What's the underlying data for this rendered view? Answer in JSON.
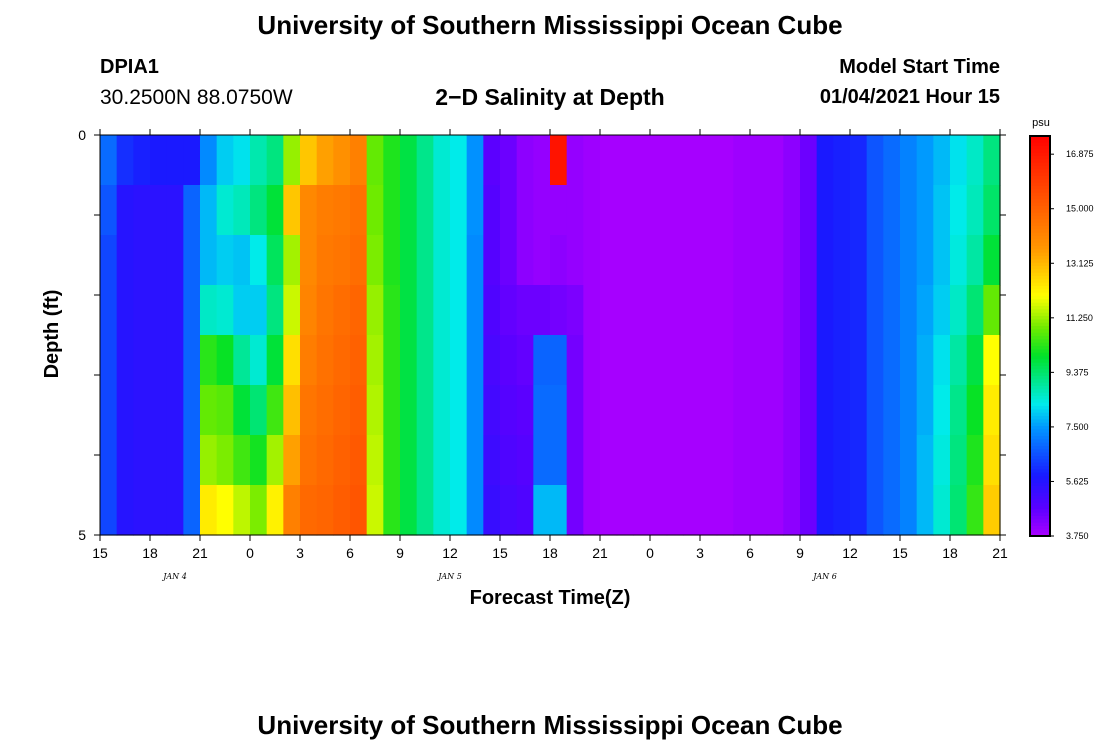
{
  "header": {
    "title": "University of Southern Mississippi Ocean Cube",
    "station_id": "DPIA1",
    "station_coords": "30.2500N 88.0750W",
    "subtitle": "2−D Salinity at Depth",
    "model_start_label": "Model Start Time",
    "model_start_value": "01/04/2021 Hour 15"
  },
  "footer": {
    "title": "University of Southern Mississippi Ocean Cube"
  },
  "chart_data": {
    "type": "heatmap",
    "title": "2−D Salinity at Depth",
    "xlabel": "Forecast Time(Z)",
    "ylabel": "Depth (ft)",
    "x_tick_labels": [
      "15",
      "18",
      "21",
      "0",
      "3",
      "6",
      "9",
      "12",
      "15",
      "18",
      "21",
      "0",
      "3",
      "6",
      "9",
      "12",
      "15",
      "18",
      "21"
    ],
    "date_labels": [
      {
        "text": "JAN 4",
        "at_tick": 1.5
      },
      {
        "text": "JAN 5",
        "at_tick": 7
      },
      {
        "text": "JAN 6",
        "at_tick": 14.5
      }
    ],
    "y_tick_labels": [
      "0",
      "5"
    ],
    "ylim": [
      0,
      5
    ],
    "x_hours": [
      0,
      54
    ],
    "colorbar": {
      "unit": "psu",
      "min": 3.75,
      "max": 17.5,
      "labels": [
        "16.875",
        "15.000",
        "13.125",
        "11.250",
        "9.375",
        "7.500",
        "5.625",
        "3.750"
      ],
      "label_values": [
        16.875,
        15.0,
        13.125,
        11.25,
        9.375,
        7.5,
        5.625,
        3.75
      ]
    },
    "depth_levels": 8,
    "hour_values": [
      0,
      1,
      2,
      3,
      4,
      5,
      6,
      7,
      8,
      9,
      10,
      11,
      12,
      13,
      14,
      15,
      16,
      17,
      18,
      19,
      20,
      21,
      22,
      23,
      24,
      25,
      26,
      27,
      28,
      29,
      30,
      31,
      32,
      33,
      34,
      35,
      36,
      37,
      38,
      39,
      40,
      41,
      42,
      43,
      44,
      45,
      46,
      47,
      48,
      49,
      50,
      51,
      52,
      53
    ],
    "values": [
      [
        6.9,
        6.1,
        5.9,
        5.8,
        5.8,
        5.8,
        7.3,
        8.0,
        8.2,
        8.8,
        9.2,
        11.2,
        12.9,
        13.5,
        13.8,
        14.2,
        10.8,
        10.2,
        9.7,
        9.1,
        8.5,
        8.3,
        7.4,
        4.7,
        4.5,
        4.1,
        4.0,
        17.0,
        4.0,
        3.9,
        3.8,
        3.8,
        3.8,
        3.8,
        3.8,
        3.8,
        3.8,
        3.8,
        3.9,
        3.9,
        3.9,
        4.1,
        4.5,
        5.8,
        5.9,
        6.0,
        6.6,
        6.9,
        7.2,
        7.5,
        7.8,
        8.2,
        8.6,
        9.2
      ],
      [
        6.6,
        5.6,
        5.5,
        5.5,
        5.5,
        6.8,
        7.8,
        8.5,
        8.7,
        9.2,
        9.8,
        12.9,
        14.0,
        14.3,
        14.4,
        14.6,
        10.9,
        10.2,
        9.7,
        9.1,
        8.5,
        8.3,
        7.4,
        4.8,
        4.5,
        4.1,
        4.0,
        4.0,
        4.0,
        3.9,
        3.8,
        3.8,
        3.8,
        3.8,
        3.8,
        3.8,
        3.8,
        3.8,
        3.9,
        3.9,
        3.9,
        4.1,
        4.5,
        5.8,
        5.9,
        6.0,
        6.6,
        6.9,
        7.2,
        7.5,
        7.9,
        8.3,
        8.7,
        9.4
      ],
      [
        6.4,
        5.6,
        5.5,
        5.5,
        5.5,
        6.8,
        7.8,
        8.0,
        7.9,
        8.3,
        9.5,
        11.3,
        14.0,
        14.4,
        14.5,
        14.7,
        11.0,
        10.2,
        9.7,
        9.1,
        8.5,
        8.3,
        7.3,
        4.8,
        4.5,
        4.1,
        4.0,
        4.1,
        4.0,
        3.9,
        3.8,
        3.8,
        3.8,
        3.8,
        3.8,
        3.8,
        3.8,
        3.8,
        3.9,
        3.9,
        3.9,
        4.1,
        4.5,
        5.8,
        5.9,
        6.0,
        6.6,
        6.9,
        7.2,
        7.5,
        7.9,
        8.4,
        8.9,
        9.8
      ],
      [
        6.4,
        5.6,
        5.5,
        5.5,
        5.5,
        6.8,
        8.6,
        8.5,
        8.0,
        8.0,
        9.2,
        11.6,
        14.1,
        14.5,
        14.7,
        14.9,
        11.2,
        10.3,
        9.7,
        9.1,
        8.5,
        8.3,
        7.3,
        4.9,
        4.6,
        4.5,
        4.5,
        4.4,
        4.3,
        3.9,
        3.8,
        3.8,
        3.8,
        3.8,
        3.8,
        3.8,
        3.8,
        3.8,
        3.9,
        3.9,
        3.9,
        4.1,
        4.5,
        5.8,
        5.9,
        6.0,
        6.6,
        6.9,
        7.2,
        7.6,
        8.0,
        8.6,
        9.3,
        10.8
      ],
      [
        6.4,
        5.6,
        5.5,
        5.5,
        5.5,
        6.8,
        10.3,
        10.0,
        9.0,
        8.5,
        9.8,
        12.5,
        14.3,
        14.6,
        14.8,
        15.0,
        11.3,
        10.3,
        9.7,
        9.1,
        8.5,
        8.3,
        7.3,
        5.0,
        4.7,
        4.6,
        6.8,
        6.8,
        4.4,
        3.9,
        3.8,
        3.8,
        3.8,
        3.8,
        3.8,
        3.8,
        3.8,
        3.8,
        3.9,
        3.9,
        3.9,
        4.1,
        4.5,
        5.8,
        5.9,
        6.0,
        6.6,
        6.9,
        7.2,
        7.7,
        8.2,
        8.9,
        9.7,
        12.0
      ],
      [
        6.4,
        5.6,
        5.5,
        5.5,
        5.5,
        6.8,
        10.8,
        10.7,
        9.8,
        9.3,
        10.5,
        13.0,
        14.5,
        14.7,
        14.9,
        15.1,
        11.4,
        10.3,
        9.7,
        9.1,
        8.5,
        8.3,
        7.3,
        5.1,
        4.8,
        4.7,
        6.9,
        6.9,
        4.4,
        3.9,
        3.8,
        3.8,
        3.8,
        3.8,
        3.8,
        3.8,
        3.8,
        3.8,
        3.9,
        3.9,
        3.9,
        4.1,
        4.5,
        5.8,
        5.9,
        6.0,
        6.6,
        6.9,
        7.2,
        7.7,
        8.3,
        9.1,
        10.0,
        12.3
      ],
      [
        6.4,
        5.6,
        5.5,
        5.5,
        5.5,
        6.8,
        11.2,
        11.0,
        10.5,
        10.1,
        11.3,
        13.5,
        14.6,
        14.8,
        15.0,
        15.2,
        11.5,
        10.3,
        9.7,
        9.1,
        8.5,
        8.3,
        7.3,
        5.2,
        4.9,
        4.8,
        6.9,
        6.9,
        4.4,
        3.9,
        3.8,
        3.8,
        3.8,
        3.8,
        3.8,
        3.8,
        3.8,
        3.8,
        3.9,
        3.9,
        3.9,
        4.1,
        4.5,
        5.8,
        5.9,
        6.0,
        6.6,
        6.9,
        7.2,
        7.8,
        8.4,
        9.2,
        10.2,
        12.5
      ],
      [
        6.4,
        5.6,
        5.5,
        5.5,
        5.5,
        6.8,
        12.3,
        12.0,
        11.5,
        11.0,
        12.2,
        14.2,
        14.8,
        14.9,
        15.1,
        15.3,
        11.6,
        10.3,
        9.7,
        9.1,
        8.5,
        8.3,
        7.3,
        5.3,
        5.0,
        4.9,
        7.8,
        7.8,
        4.4,
        3.9,
        3.8,
        3.8,
        3.8,
        3.8,
        3.8,
        3.8,
        3.8,
        3.8,
        3.9,
        3.9,
        3.9,
        4.1,
        4.5,
        5.8,
        5.9,
        6.0,
        6.6,
        6.9,
        7.2,
        7.8,
        8.5,
        9.3,
        10.4,
        12.8
      ]
    ],
    "grid": false,
    "legend": "right"
  }
}
